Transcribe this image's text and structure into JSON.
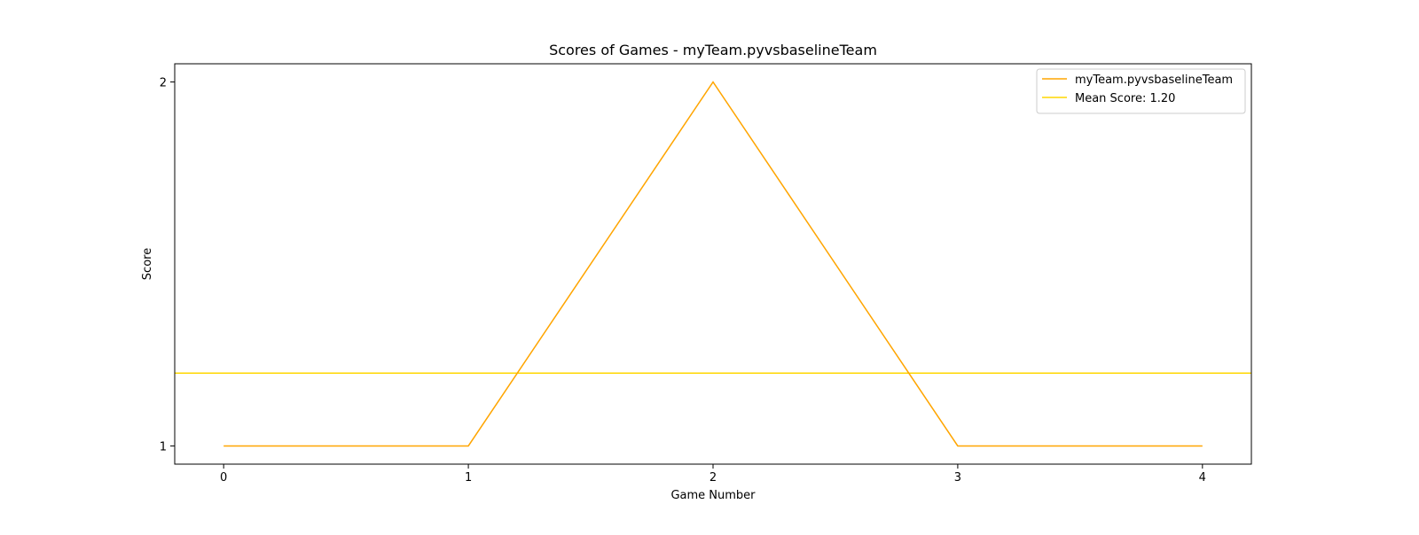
{
  "chart_data": {
    "type": "line",
    "title": "Scores of Games - myTeam.pyvsbaselineTeam",
    "xlabel": "Game Number",
    "ylabel": "Score",
    "x": [
      0,
      1,
      2,
      3,
      4
    ],
    "xticks": [
      "0",
      "1",
      "2",
      "3",
      "4"
    ],
    "yticks": [
      "1",
      "2"
    ],
    "xlim": [
      -0.2,
      4.2
    ],
    "ylim": [
      0.95,
      2.05
    ],
    "series": [
      {
        "name": "myTeam.pyvsbaselineTeam",
        "values": [
          1,
          1,
          2,
          1,
          1
        ],
        "color": "#FFA500"
      }
    ],
    "hlines": [
      {
        "name": "Mean Score: 1.20",
        "value": 1.2,
        "color": "#FFD700"
      }
    ],
    "legend_position": "top-right",
    "grid": false
  }
}
